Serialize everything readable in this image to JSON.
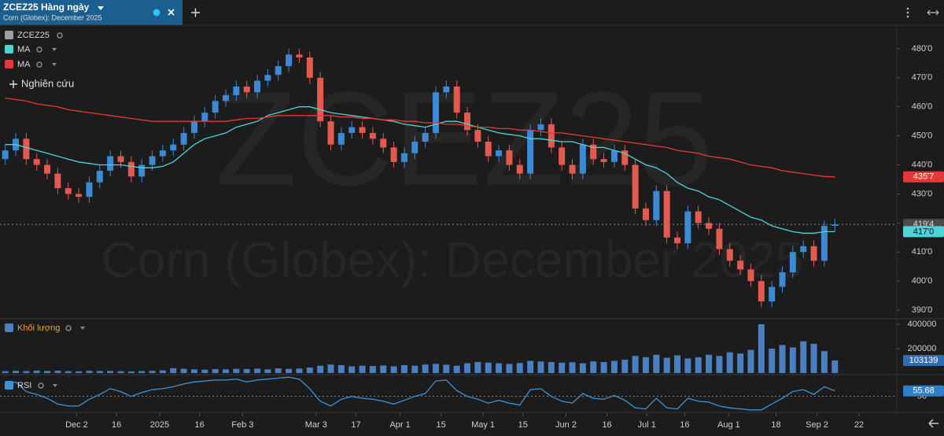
{
  "header": {
    "title": "ZCEZ25 Hàng ngày",
    "subtitle": "Corn (Globex): December 2025"
  },
  "study_button": "Nghiên cứu",
  "chart_data": [
    {
      "type": "candlestick",
      "name": "ZCEZ25",
      "watermark": "ZCEZ25",
      "up_color": "#3a8ad6",
      "down_color": "#e55a50",
      "opens": [
        442,
        445,
        449,
        442,
        440,
        437,
        432,
        430,
        429,
        434,
        438,
        443,
        441,
        436,
        440,
        443,
        445,
        447,
        451,
        455,
        458,
        462,
        464,
        467,
        465,
        469,
        471,
        474,
        478,
        477,
        470,
        455,
        447,
        451,
        453,
        451,
        449,
        446,
        441,
        444,
        448,
        451,
        465,
        467,
        458,
        452,
        448,
        443,
        445,
        440,
        437,
        452,
        454,
        446,
        440,
        437,
        447,
        442,
        441,
        445,
        440,
        425,
        421,
        431,
        415,
        413,
        424,
        420,
        418,
        411,
        407,
        404,
        400,
        393,
        398,
        403,
        410,
        412,
        407,
        419
      ],
      "highs": [
        447,
        451,
        451,
        444,
        442,
        439,
        434,
        432,
        436,
        440,
        445,
        445,
        443,
        442,
        445,
        447,
        449,
        453,
        457,
        460,
        464,
        466,
        469,
        469,
        471,
        473,
        476,
        480,
        480,
        479,
        472,
        457,
        453,
        455,
        455,
        453,
        451,
        448,
        446,
        450,
        453,
        467,
        469,
        469,
        460,
        454,
        450,
        447,
        447,
        442,
        454,
        456,
        456,
        448,
        442,
        449,
        449,
        444,
        447,
        447,
        442,
        427,
        433,
        433,
        417,
        426,
        426,
        422,
        420,
        413,
        409,
        406,
        402,
        400,
        405,
        412,
        414,
        414,
        421,
        421.5
      ],
      "lows": [
        440,
        443,
        440,
        438,
        435,
        430,
        428,
        427,
        427,
        432,
        436,
        439,
        434,
        434,
        438,
        441,
        443,
        445,
        449,
        453,
        456,
        460,
        462,
        463,
        463,
        467,
        469,
        472,
        475,
        468,
        453,
        445,
        445,
        449,
        449,
        447,
        444,
        439,
        439,
        442,
        446,
        449,
        463,
        456,
        450,
        446,
        441,
        441,
        438,
        435,
        435,
        450,
        444,
        438,
        435,
        435,
        440,
        439,
        439,
        438,
        423,
        419,
        419,
        413,
        411,
        411,
        418,
        416,
        409,
        405,
        402,
        398,
        391,
        391,
        396,
        401,
        408,
        405,
        405,
        417
      ],
      "closes": [
        445,
        449,
        442,
        440,
        437,
        432,
        430,
        429,
        434,
        438,
        443,
        441,
        436,
        440,
        443,
        445,
        447,
        451,
        455,
        458,
        462,
        464,
        467,
        465,
        469,
        471,
        474,
        478,
        477,
        470,
        455,
        447,
        451,
        453,
        451,
        449,
        446,
        441,
        444,
        448,
        451,
        465,
        467,
        458,
        452,
        448,
        443,
        445,
        440,
        437,
        452,
        454,
        446,
        440,
        437,
        447,
        442,
        441,
        445,
        440,
        425,
        421,
        431,
        415,
        413,
        424,
        420,
        418,
        411,
        407,
        404,
        400,
        393,
        398,
        403,
        410,
        412,
        407,
        419,
        419.5
      ],
      "last_label": "419'4",
      "ylim": [
        387.3,
        487.3
      ],
      "yticks": [
        {
          "value": 390,
          "label": "390'0"
        },
        {
          "value": 400,
          "label": "400'0"
        },
        {
          "value": 410,
          "label": "410'0"
        },
        {
          "value": 420,
          "label": "420'0"
        },
        {
          "value": 430,
          "label": "430'0"
        },
        {
          "value": 440,
          "label": "440'0"
        },
        {
          "value": 450,
          "label": "450'0"
        },
        {
          "value": 460,
          "label": "460'0"
        },
        {
          "value": 470,
          "label": "470'0"
        },
        {
          "value": 480,
          "label": "480'0"
        }
      ],
      "series": [
        {
          "name": "MA",
          "color": "#4fd2d8",
          "last_label": "417'0",
          "values": [
            447,
            447,
            446,
            445,
            444,
            443,
            442,
            441,
            440.5,
            440,
            440,
            440,
            439.5,
            439,
            439,
            439.5,
            441,
            444,
            447,
            449,
            450,
            451,
            453,
            454,
            455,
            457,
            458,
            459,
            460,
            460,
            459,
            458,
            457.5,
            457,
            456.5,
            456,
            455.5,
            455,
            454,
            453.5,
            453,
            454,
            455,
            455,
            454,
            453,
            452,
            451,
            450.5,
            450,
            449,
            449,
            448.5,
            448,
            448,
            447,
            446,
            446,
            445,
            444,
            442,
            440,
            439,
            437,
            434,
            432,
            431,
            429,
            428,
            426,
            424,
            422,
            421,
            419,
            418,
            417,
            416.5,
            416.5,
            417,
            417
          ]
        },
        {
          "name": "MA",
          "color": "#e53935",
          "last_label": "435'7",
          "values": [
            463,
            462.5,
            462,
            461,
            460.5,
            460,
            459,
            458.5,
            458,
            457.5,
            457,
            456.5,
            456,
            455.5,
            455,
            455,
            455,
            455,
            455,
            455,
            455,
            455,
            455.5,
            456,
            456,
            456.5,
            457,
            457,
            457,
            457,
            457,
            457,
            456.5,
            456.5,
            456,
            456,
            455.5,
            455.5,
            455,
            455,
            454.5,
            454.5,
            454,
            454,
            453.5,
            453,
            453,
            452.5,
            452.5,
            452,
            452,
            451.5,
            451,
            451,
            450.5,
            450,
            449.5,
            449,
            448.5,
            448,
            447.5,
            447,
            446.5,
            446,
            445,
            444.5,
            444,
            443,
            442.5,
            442,
            441,
            440,
            439.5,
            439,
            438,
            437.5,
            437,
            436.5,
            436,
            435.875
          ]
        }
      ]
    },
    {
      "type": "bar",
      "name": "Khối lượng",
      "color": "#4a7fc2",
      "values": [
        15000,
        18000,
        16000,
        20000,
        17000,
        19000,
        15000,
        14000,
        18000,
        16000,
        17000,
        15000,
        13000,
        16000,
        18000,
        22000,
        40000,
        35000,
        30000,
        28000,
        32000,
        30000,
        35000,
        33000,
        36000,
        30000,
        38000,
        34000,
        37000,
        45000,
        60000,
        70000,
        65000,
        55000,
        60000,
        58000,
        62000,
        55000,
        65000,
        60000,
        70000,
        75000,
        68000,
        60000,
        80000,
        90000,
        85000,
        80000,
        75000,
        82000,
        100000,
        95000,
        90000,
        85000,
        88000,
        80000,
        95000,
        90000,
        100000,
        110000,
        140000,
        130000,
        150000,
        125000,
        145000,
        120000,
        130000,
        150000,
        140000,
        170000,
        160000,
        190000,
        400000,
        200000,
        230000,
        210000,
        260000,
        240000,
        180000,
        103139
      ],
      "ylim": [
        0,
        438700
      ],
      "yticks": [
        200000,
        400000
      ]
    },
    {
      "type": "line",
      "name": "RSI",
      "color": "#3b93d6",
      "values": [
        62,
        65,
        55,
        52,
        48,
        42,
        40,
        40,
        47,
        52,
        58,
        55,
        50,
        54,
        57,
        58,
        60,
        63,
        65,
        66,
        67,
        67,
        68,
        65,
        67,
        68,
        69,
        70,
        68,
        58,
        45,
        40,
        47,
        50,
        48,
        47,
        45,
        42,
        46,
        50,
        53,
        66,
        67,
        56,
        50,
        47,
        43,
        46,
        43,
        41,
        57,
        58,
        50,
        45,
        43,
        53,
        48,
        47,
        51,
        46,
        38,
        37,
        48,
        38,
        37,
        48,
        45,
        44,
        40,
        38,
        37,
        36,
        36,
        42,
        48,
        55,
        57,
        52,
        60,
        55.68
      ],
      "ylim": [
        35,
        71
      ],
      "yticks": [
        50
      ],
      "xlim": [
        -0.5,
        84.9
      ],
      "xticks": [
        {
          "value": 6.8,
          "label": "Dec 2"
        },
        {
          "value": 10.6,
          "label": "16"
        },
        {
          "value": 14.7,
          "label": "2025"
        },
        {
          "value": 18.5,
          "label": "16"
        },
        {
          "value": 22.6,
          "label": "Feb 3"
        },
        {
          "value": 29.6,
          "label": "Mar 3"
        },
        {
          "value": 33.4,
          "label": "17"
        },
        {
          "value": 37.6,
          "label": "Apr 1"
        },
        {
          "value": 41.5,
          "label": "15"
        },
        {
          "value": 45.5,
          "label": "May 1"
        },
        {
          "value": 49.3,
          "label": "15"
        },
        {
          "value": 53.4,
          "label": "Jun 2"
        },
        {
          "value": 57.3,
          "label": "16"
        },
        {
          "value": 61.1,
          "label": "Jul 1"
        },
        {
          "value": 64.7,
          "label": "16"
        },
        {
          "value": 68.9,
          "label": "Aug 1"
        },
        {
          "value": 73.4,
          "label": "18"
        },
        {
          "value": 77.3,
          "label": "Sep 2"
        },
        {
          "value": 81.3,
          "label": "22"
        }
      ]
    }
  ]
}
